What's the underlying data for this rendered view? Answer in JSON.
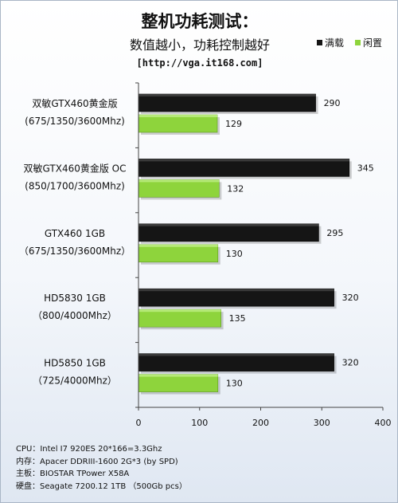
{
  "chart_data": {
    "type": "bar",
    "title": "整机功耗测试：",
    "subtitle": "数值越小，功耗控制越好",
    "source": "[http://vga.it168.com]",
    "categories": [
      {
        "name": "双敏GTX460黄金版",
        "spec": "(675/1350/3600Mhz)"
      },
      {
        "name": "双敏GTX460黄金版 OC",
        "spec": "(850/1700/3600Mhz)"
      },
      {
        "name": "GTX460 1GB",
        "spec": "（675/1350/3600Mhz）"
      },
      {
        "name": "HD5830 1GB",
        "spec": "（800/4000Mhz）"
      },
      {
        "name": "HD5850 1GB",
        "spec": "（725/4000Mhz）"
      }
    ],
    "series": [
      {
        "name": "满载",
        "color": "#151515",
        "values": [
          290,
          345,
          295,
          320,
          320
        ]
      },
      {
        "name": "闲置",
        "color": "#8ed43c",
        "values": [
          129,
          132,
          130,
          135,
          130
        ]
      }
    ],
    "xlim": [
      0,
      400
    ],
    "xticks": [
      0,
      100,
      200,
      300,
      400
    ],
    "grid": false,
    "legend_position": "top-right",
    "orientation": "horizontal"
  },
  "notes": [
    {
      "label": "CPU：",
      "value": "Intel I7 920ES 20*166=3.3Ghz"
    },
    {
      "label": "内存：",
      "value": "Apacer DDRIII-1600 2G*3 (by SPD)"
    },
    {
      "label": "主板：",
      "value": "BIOSTAR TPower X58A"
    },
    {
      "label": "硬盘：",
      "value": "Seagate 7200.12 1TB （500Gb pcs）"
    }
  ]
}
